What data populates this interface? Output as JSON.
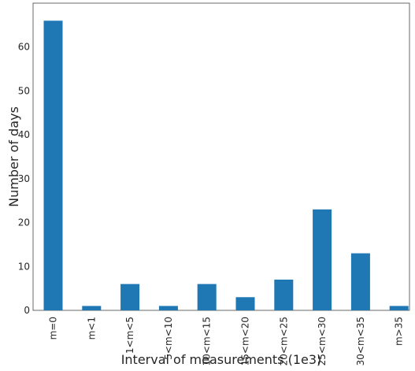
{
  "chart_data": {
    "type": "bar",
    "title": "",
    "xlabel": "Interval of measurements (1e3)",
    "ylabel": "Number of days",
    "categories": [
      "m=0",
      "m<1",
      "1<m<5",
      "5<m<10",
      "10<m<15",
      "15<m<20",
      "20<m<25",
      "25<m<30",
      "30<m<35",
      "m>35"
    ],
    "values": [
      66,
      1,
      6,
      1,
      6,
      3,
      7,
      23,
      13,
      1
    ],
    "ylim": [
      0,
      70
    ],
    "yticks": [
      0,
      10,
      20,
      30,
      40,
      50,
      60
    ],
    "ytick_labels": [
      "0",
      "10",
      "20",
      "30",
      "40",
      "50",
      "60"
    ],
    "grid": false,
    "bar_color": "#1f77b4"
  }
}
